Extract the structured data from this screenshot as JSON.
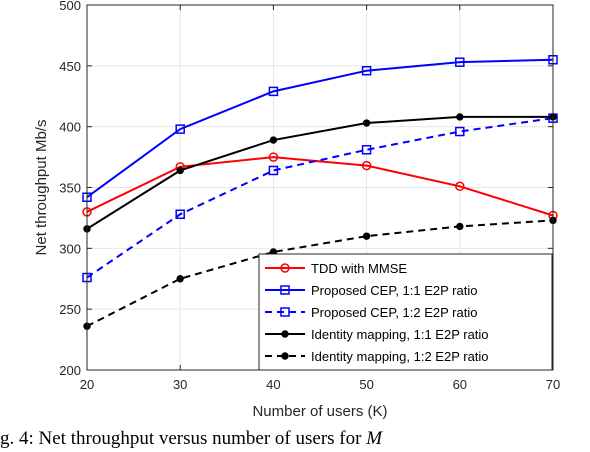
{
  "chart_data": {
    "type": "line",
    "xlabel": "Number of users (K)",
    "ylabel": "Net throughput Mb/s",
    "x": [
      20,
      30,
      40,
      50,
      60,
      70
    ],
    "xlim": [
      20,
      70
    ],
    "ylim": [
      200,
      500
    ],
    "xticks": [
      "20",
      "30",
      "40",
      "50",
      "60",
      "70"
    ],
    "yticks": [
      "200",
      "250",
      "300",
      "350",
      "400",
      "450",
      "500"
    ],
    "grid": true,
    "legend_position": "bottom-right",
    "series": [
      {
        "name": "TDD with MMSE",
        "values": [
          330,
          367,
          375,
          368,
          351,
          327
        ],
        "color": "#ff0000",
        "dash": "solid",
        "marker": "circle-open"
      },
      {
        "name": "Proposed CEP, 1:1 E2P ratio",
        "values": [
          342,
          398,
          429,
          446,
          453,
          455
        ],
        "color": "#0000ff",
        "dash": "solid",
        "marker": "square-open"
      },
      {
        "name": "Proposed CEP, 1:2 E2P ratio",
        "values": [
          276,
          328,
          364,
          381,
          396,
          407
        ],
        "color": "#0000ff",
        "dash": "dashed",
        "marker": "square-open"
      },
      {
        "name": "Identity mapping, 1:1 E2P ratio",
        "values": [
          316,
          364,
          389,
          403,
          408,
          408
        ],
        "color": "#000000",
        "dash": "solid",
        "marker": "dot"
      },
      {
        "name": "Identity mapping, 1:2 E2P ratio",
        "values": [
          236,
          275,
          297,
          310,
          318,
          323
        ],
        "color": "#000000",
        "dash": "dashed",
        "marker": "dot"
      }
    ]
  },
  "caption": {
    "prefix": "g. 4: Net throughput versus number of users for ",
    "var": "M"
  }
}
